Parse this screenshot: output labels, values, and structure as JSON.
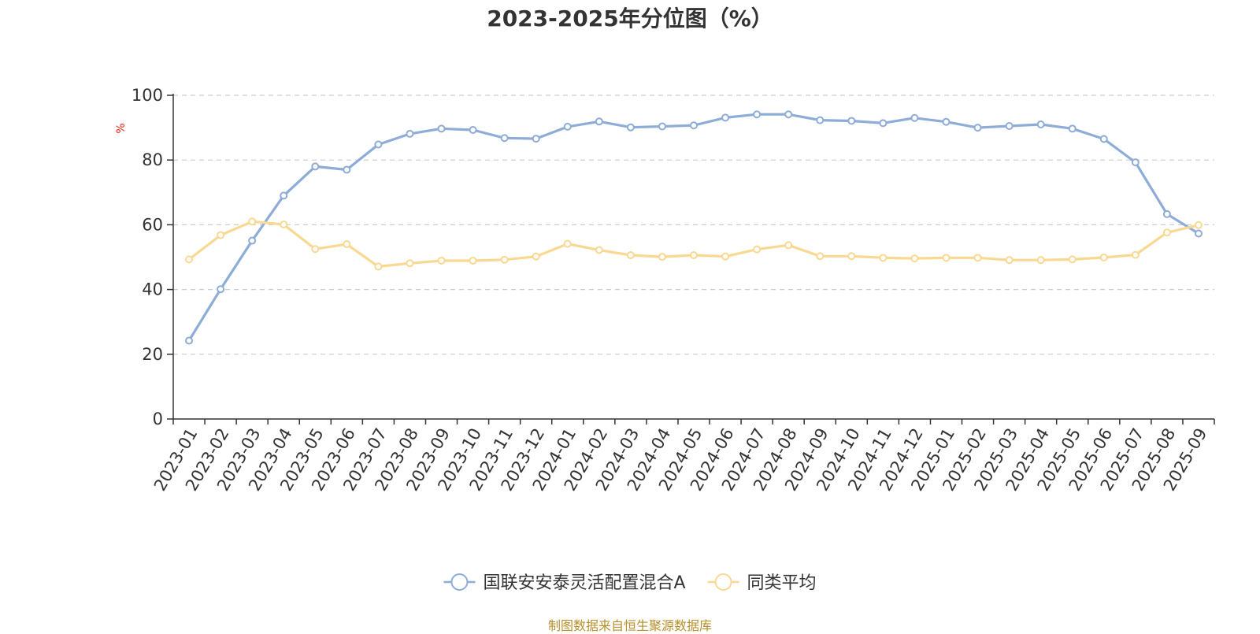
{
  "chart_data": {
    "type": "line",
    "title": "2023-2025年分位图（%）",
    "ylabel": "%",
    "ylim": [
      0,
      100
    ],
    "yticks": [
      "0",
      "20",
      "40",
      "60",
      "80",
      "100"
    ],
    "grid": true,
    "legend_position": "bottom",
    "categories": [
      "2023-01",
      "2023-02",
      "2023-03",
      "2023-04",
      "2023-05",
      "2023-06",
      "2023-07",
      "2023-08",
      "2023-09",
      "2023-10",
      "2023-11",
      "2023-12",
      "2024-01",
      "2024-02",
      "2024-03",
      "2024-04",
      "2024-05",
      "2024-06",
      "2024-07",
      "2024-08",
      "2024-09",
      "2024-10",
      "2024-11",
      "2024-12",
      "2025-01",
      "2025-02",
      "2025-03",
      "2025-04",
      "2025-05",
      "2025-06",
      "2025-07",
      "2025-08",
      "2025-09"
    ],
    "series": [
      {
        "name": "国联安安泰灵活配置混合A",
        "color": "#8eacd8",
        "values": [
          24.2,
          40.1,
          55.1,
          69.0,
          78.0,
          77.0,
          84.8,
          88.1,
          89.7,
          89.3,
          86.8,
          86.6,
          90.3,
          91.9,
          90.1,
          90.4,
          90.7,
          93.1,
          94.1,
          94.1,
          92.3,
          92.1,
          91.4,
          93.0,
          91.8,
          90.0,
          90.5,
          91.0,
          89.7,
          86.5,
          79.3,
          63.3,
          57.3
        ]
      },
      {
        "name": "同类平均",
        "color": "#f9d892",
        "values": [
          49.3,
          56.8,
          61.0,
          60.1,
          52.5,
          54.0,
          47.1,
          48.1,
          48.9,
          48.9,
          49.2,
          50.2,
          54.1,
          52.2,
          50.6,
          50.1,
          50.6,
          50.2,
          52.4,
          53.7,
          50.3,
          50.3,
          49.8,
          49.6,
          49.8,
          49.8,
          49.1,
          49.1,
          49.3,
          49.9,
          50.7,
          57.6,
          59.9
        ]
      }
    ]
  },
  "source": "制图数据来自恒生聚源数据库"
}
